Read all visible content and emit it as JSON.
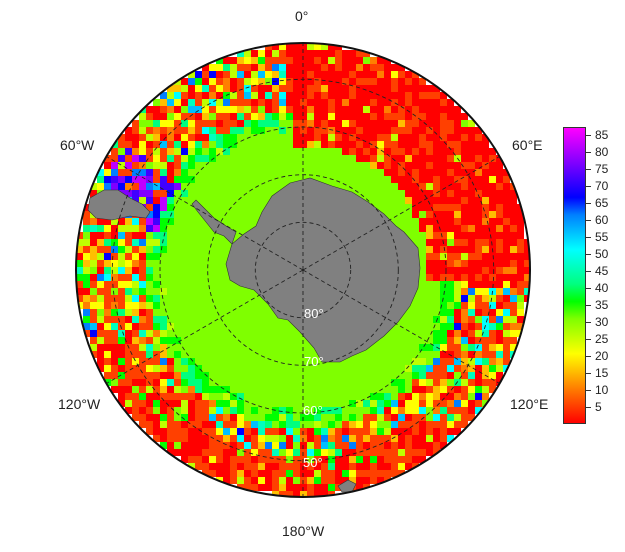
{
  "lon_labels": {
    "top": "0°",
    "left_upper": "60°W",
    "right_upper": "60°E",
    "left_lower": "120°W",
    "right_lower": "120°E",
    "bottom": "180°W"
  },
  "lat_labels": {
    "lat80": "80°",
    "lat70": "70°",
    "lat60a": "60°",
    "lat50": "50°"
  },
  "colorbar": {
    "ticks": [
      "85",
      "80",
      "75",
      "70",
      "65",
      "60",
      "55",
      "50",
      "45",
      "40",
      "35",
      "30",
      "25",
      "20",
      "15",
      "10",
      "5"
    ],
    "min": 0,
    "max": 87.5,
    "colors": [
      "#ff0000",
      "#ff4000",
      "#ff7f00",
      "#ffbf00",
      "#ffff00",
      "#bfff00",
      "#7fff00",
      "#00ff00",
      "#00ff7f",
      "#00ffbf",
      "#00ffff",
      "#00bfff",
      "#007fff",
      "#0000ff",
      "#4000ff",
      "#8000ff",
      "#bf00ff",
      "#ff00ff"
    ]
  },
  "colors": {
    "land": "#808080",
    "background": "#ffffff",
    "grid": "#222222"
  }
}
